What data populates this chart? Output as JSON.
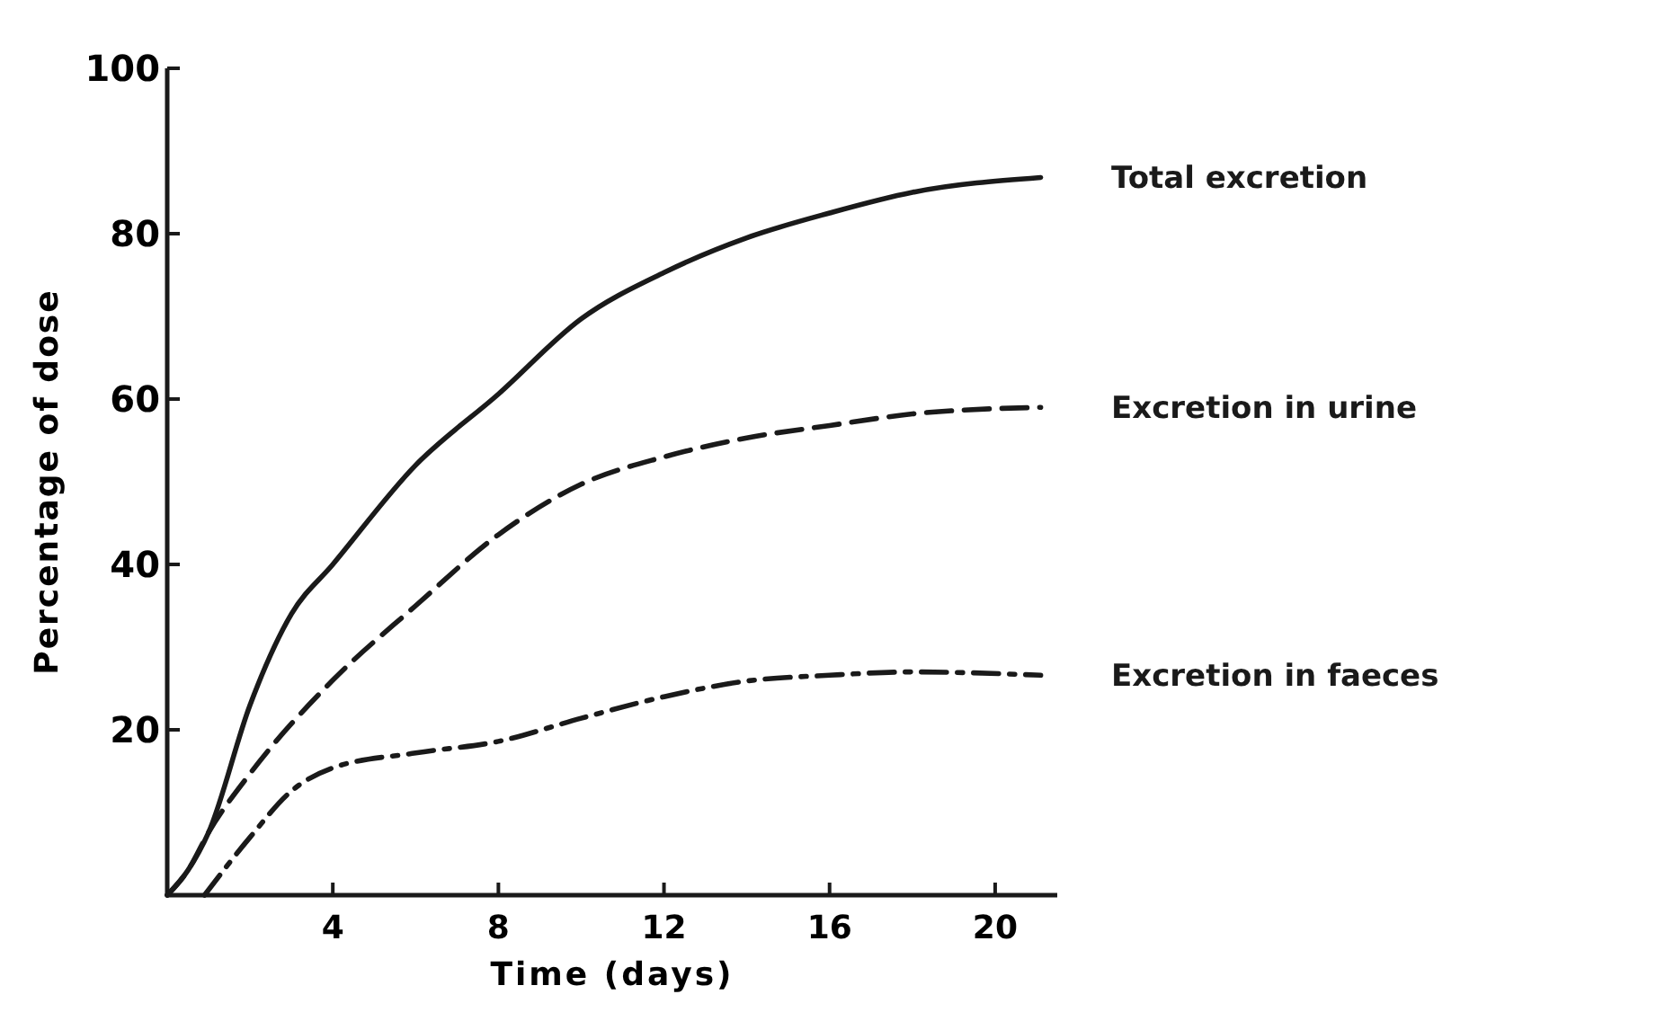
{
  "chart_data": {
    "type": "line",
    "xlabel": "Time (days)",
    "ylabel": "Percentage of dose",
    "xlim": [
      0,
      21.5
    ],
    "xticks": [
      4,
      8,
      12,
      16,
      20
    ],
    "ylim": [
      0,
      100
    ],
    "yticks": [
      20,
      40,
      60,
      80,
      100
    ],
    "grid": false,
    "legend": false,
    "marker": "none",
    "series": [
      {
        "name": "Total excretion",
        "color": "#1a1a1a",
        "line_style": "solid",
        "x": [
          0,
          0.5,
          1,
          2,
          3,
          4,
          6,
          8,
          10,
          12,
          14,
          16,
          18,
          21.1
        ],
        "values": [
          0,
          3,
          7.6,
          23,
          34,
          40,
          52,
          60.6,
          69.7,
          75.3,
          79.5,
          82.5,
          85,
          86.8
        ]
      },
      {
        "name": "Excretion in urine",
        "color": "#1a1a1a",
        "line_style": "dashed",
        "x": [
          0,
          0.5,
          1,
          2,
          4,
          6,
          8,
          10,
          12,
          14,
          16,
          18,
          21.1
        ],
        "values": [
          0,
          3,
          7.6,
          14.7,
          26,
          35,
          43.6,
          49.7,
          53,
          55.3,
          56.8,
          58.2,
          59
        ]
      },
      {
        "name": "Excretion in faeces",
        "color": "#1a1a1a",
        "line_style": "dashdot",
        "x": [
          0.9,
          2,
          3,
          4,
          6,
          8,
          10,
          12,
          14,
          16,
          18,
          21.1
        ],
        "values": [
          0,
          7,
          12.6,
          15.4,
          17.2,
          18.6,
          21.4,
          24,
          25.9,
          26.6,
          27,
          26.6
        ]
      }
    ]
  }
}
